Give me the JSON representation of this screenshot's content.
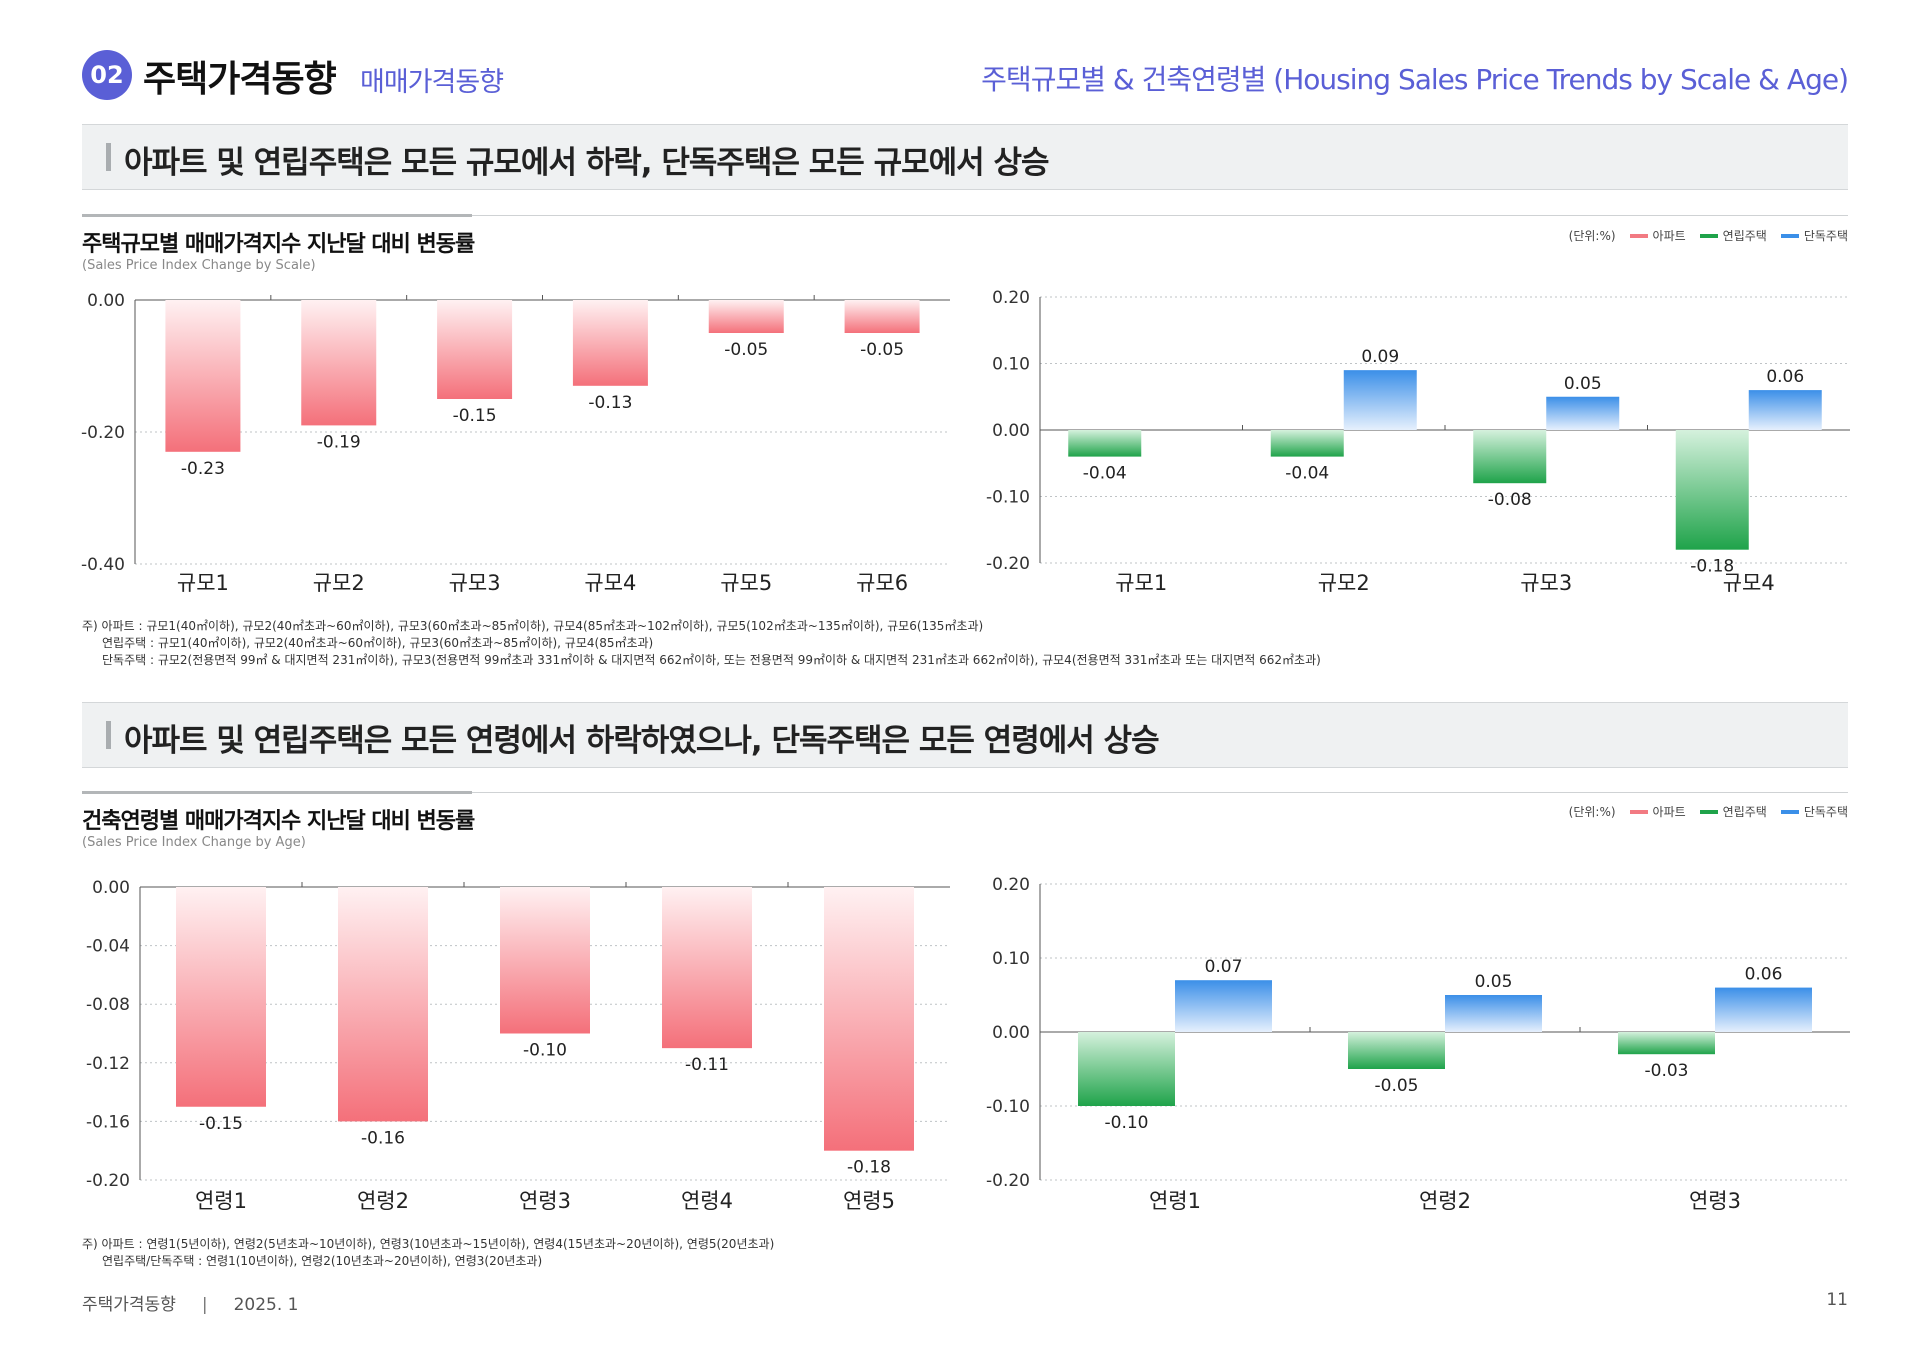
{
  "header": {
    "badge": "02",
    "title": "주택가격동향",
    "subtitle": "매매가격동향",
    "right_title": "주택규모별 & 건축연령별 (Housing Sales Price Trends by Scale & Age)"
  },
  "section1": {
    "headline": "아파트 및 연립주택은 모든 규모에서 하락, 단독주택은 모든 규모에서 상승",
    "chart_title": "주택규모별 매매가격지수 지난달 대비 변동률",
    "chart_subtitle": "(Sales Price Index Change by Scale)",
    "notes": [
      "주) 아파트 : 규모1(40㎡이하), 규모2(40㎡초과~60㎡이하), 규모3(60㎡초과~85㎡이하), 규모4(85㎡초과~102㎡이하), 규모5(102㎡초과~135㎡이하), 규모6(135㎡초과)",
      "연립주택 : 규모1(40㎡이하), 규모2(40㎡초과~60㎡이하), 규모3(60㎡초과~85㎡이하), 규모4(85㎡초과)",
      "단독주택 : 규모2(전용면적 99㎡ & 대지면적 231㎡이하), 규모3(전용면적 99㎡초과 331㎡이하 & 대지면적 662㎡이하, 또는 전용면적 99㎡이하 & 대지면적 231㎡초과 662㎡이하), 규모4(전용면적 331㎡초과 또는 대지면적 662㎡초과)"
    ]
  },
  "section2": {
    "headline": "아파트 및 연립주택은 모든 연령에서 하락하였으나, 단독주택은 모든 연령에서 상승",
    "chart_title": "건축연령별 매매가격지수 지난달 대비 변동률",
    "chart_subtitle": "(Sales Price Index Change by Age)",
    "notes": [
      "주) 아파트 : 연령1(5년이하), 연령2(5년초과~10년이하), 연령3(10년초과~15년이하), 연령4(15년초과~20년이하), 연령5(20년초과)",
      "연립주택/단독주택 : 연령1(10년이하), 연령2(10년초과~20년이하), 연령3(20년초과)"
    ]
  },
  "legend": {
    "unit": "(단위:%)",
    "items": [
      {
        "label": "아파트",
        "color": "#f27a82"
      },
      {
        "label": "연립주택",
        "color": "#1fa34a"
      },
      {
        "label": "단독주택",
        "color": "#3b8fe8"
      }
    ]
  },
  "colors": {
    "accent": "#5a5fd6",
    "apartment": "#f27a82",
    "row_house": "#1fa34a",
    "detached": "#3b8fe8"
  },
  "chart_data": [
    {
      "type": "bar",
      "categories": [
        "규모1",
        "규모2",
        "규모3",
        "규모4",
        "규모5",
        "규모6"
      ],
      "series": [
        {
          "name": "아파트",
          "values": [
            -0.23,
            -0.19,
            -0.15,
            -0.13,
            -0.05,
            -0.05
          ]
        }
      ],
      "ylim": [
        -0.4,
        0.0
      ],
      "yticks": [
        "0.00",
        "-0.20",
        "-0.40"
      ],
      "labels": [
        "-0.23",
        "-0.19",
        "-0.15",
        "-0.13",
        "-0.05",
        "-0.05"
      ],
      "grid": true
    },
    {
      "type": "bar",
      "categories": [
        "규모1",
        "규모2",
        "규모3",
        "규모4"
      ],
      "series": [
        {
          "name": "연립주택",
          "values": [
            -0.04,
            -0.04,
            -0.08,
            -0.18
          ],
          "labels": [
            "-0.04",
            "-0.04",
            "-0.08",
            "-0.18"
          ]
        },
        {
          "name": "단독주택",
          "values": [
            null,
            0.09,
            0.05,
            0.06
          ],
          "labels": [
            null,
            "0.09",
            "0.05",
            "0.06"
          ]
        }
      ],
      "ylim": [
        -0.2,
        0.2
      ],
      "yticks": [
        "0.20",
        "0.10",
        "0.00",
        "-0.10",
        "-0.20"
      ],
      "grid": true
    },
    {
      "type": "bar",
      "categories": [
        "연령1",
        "연령2",
        "연령3",
        "연령4",
        "연령5"
      ],
      "series": [
        {
          "name": "아파트",
          "values": [
            -0.15,
            -0.16,
            -0.1,
            -0.11,
            -0.18
          ]
        }
      ],
      "ylim": [
        -0.2,
        0.0
      ],
      "yticks": [
        "0.00",
        "-0.04",
        "-0.08",
        "-0.12",
        "-0.16",
        "-0.20"
      ],
      "labels": [
        "-0.15",
        "-0.16",
        "-0.10",
        "-0.11",
        "-0.18"
      ],
      "grid": true
    },
    {
      "type": "bar",
      "categories": [
        "연령1",
        "연령2",
        "연령3"
      ],
      "series": [
        {
          "name": "연립주택",
          "values": [
            -0.1,
            -0.05,
            -0.03
          ],
          "labels": [
            "-0.10",
            "-0.05",
            "-0.03"
          ]
        },
        {
          "name": "단독주택",
          "values": [
            0.07,
            0.05,
            0.06
          ],
          "labels": [
            "0.07",
            "0.05",
            "0.06"
          ]
        }
      ],
      "ylim": [
        -0.2,
        0.2
      ],
      "yticks": [
        "0.20",
        "0.10",
        "0.00",
        "-0.10",
        "-0.20"
      ],
      "grid": true
    }
  ],
  "footer": {
    "left": "주택가격동향",
    "separator": "|",
    "date": "2025. 1",
    "page": "11"
  }
}
